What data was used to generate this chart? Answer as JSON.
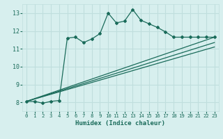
{
  "xlabel": "Humidex (Indice chaleur)",
  "bg_color": "#d7efee",
  "grid_color": "#c0dedd",
  "line_color": "#1a6b5a",
  "xlim": [
    -0.5,
    23.5
  ],
  "ylim": [
    7.5,
    13.5
  ],
  "xticks": [
    0,
    1,
    2,
    3,
    4,
    5,
    6,
    7,
    8,
    9,
    10,
    11,
    12,
    13,
    14,
    15,
    16,
    17,
    18,
    19,
    20,
    21,
    22,
    23
  ],
  "yticks": [
    8,
    9,
    10,
    11,
    12,
    13
  ],
  "main_curve_x": [
    0,
    1,
    2,
    3,
    4,
    5,
    6,
    7,
    8,
    9,
    10,
    11,
    12,
    13,
    14,
    15,
    16,
    17,
    18,
    19,
    20,
    21,
    22,
    23
  ],
  "main_curve_y": [
    8.05,
    8.05,
    7.95,
    8.05,
    8.1,
    11.6,
    11.65,
    11.35,
    11.55,
    11.85,
    13.0,
    12.45,
    12.55,
    13.2,
    12.6,
    12.4,
    12.2,
    11.95,
    11.65,
    11.65,
    11.65,
    11.65,
    11.65,
    11.65
  ],
  "line2_x": [
    0,
    23
  ],
  "line2_y": [
    8.05,
    11.65
  ],
  "line3_x": [
    0,
    23
  ],
  "line3_y": [
    8.05,
    11.35
  ],
  "line4_x": [
    0,
    23
  ],
  "line4_y": [
    8.05,
    11.1
  ]
}
